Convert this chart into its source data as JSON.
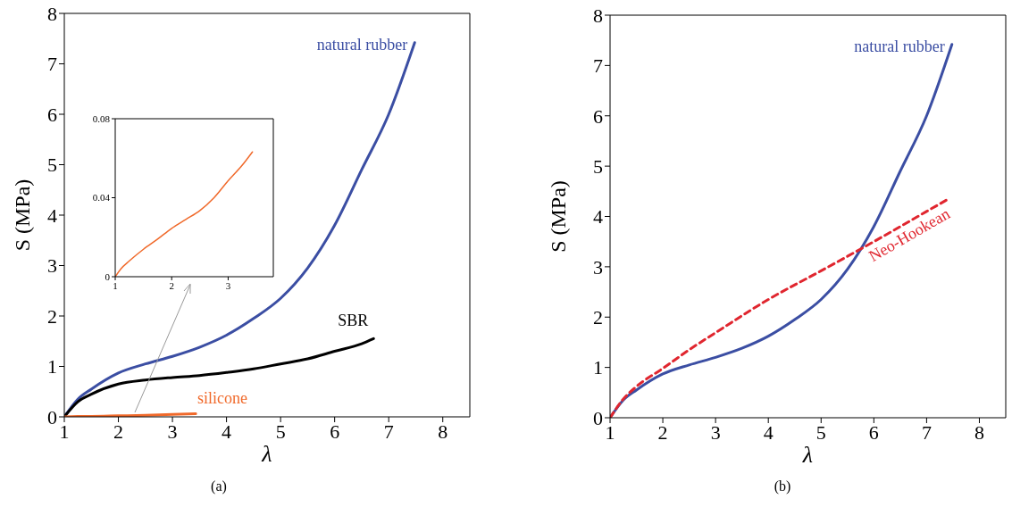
{
  "chart_data": [
    {
      "type": "line",
      "xlabel": "λ",
      "ylabel": "S (MPa)",
      "xlim": [
        1,
        8.5
      ],
      "ylim": [
        0,
        8
      ],
      "xticks": [
        1,
        2,
        3,
        4,
        5,
        6,
        7,
        8
      ],
      "yticks": [
        0,
        1,
        2,
        3,
        4,
        5,
        6,
        7,
        8
      ],
      "marker": "none",
      "line_style": "solid",
      "annotations": [
        "(a)"
      ],
      "series": [
        {
          "name": "natural rubber",
          "color": "#3b4ea3",
          "x": [
            1,
            1.25,
            1.5,
            2,
            2.5,
            3,
            3.5,
            4,
            4.5,
            5,
            5.5,
            6,
            6.5,
            7,
            7.48
          ],
          "values": [
            0,
            0.35,
            0.55,
            0.87,
            1.05,
            1.2,
            1.38,
            1.62,
            1.95,
            2.35,
            2.95,
            3.8,
            4.9,
            6.0,
            7.42
          ]
        },
        {
          "name": "SBR",
          "color": "#000000",
          "x": [
            1,
            1.25,
            1.5,
            2,
            2.5,
            3,
            3.5,
            4,
            4.5,
            5,
            5.5,
            6,
            6.5,
            6.72
          ],
          "values": [
            0,
            0.3,
            0.45,
            0.65,
            0.73,
            0.78,
            0.82,
            0.88,
            0.95,
            1.05,
            1.15,
            1.3,
            1.45,
            1.55
          ]
        },
        {
          "name": "silicone",
          "color": "#f0692a",
          "x": [
            1,
            1.25,
            1.5,
            2,
            2.5,
            3,
            3.43
          ],
          "values": [
            0,
            0.01,
            0.01,
            0.02,
            0.03,
            0.05,
            0.06
          ]
        }
      ]
    },
    {
      "type": "line",
      "xlim": [
        1,
        3.8
      ],
      "ylim": [
        0,
        0.08
      ],
      "xticks": [
        1,
        2,
        3
      ],
      "yticks": [
        0,
        0.04,
        0.08
      ],
      "marker": "none",
      "line_style": "solid",
      "series": [
        {
          "color": "#f0692a",
          "x": [
            1,
            1.1,
            1.25,
            1.5,
            1.75,
            2,
            2.25,
            2.5,
            2.75,
            3,
            3.25,
            3.43
          ],
          "values": [
            0,
            0.004,
            0.008,
            0.0139,
            0.019,
            0.0245,
            0.029,
            0.0335,
            0.04,
            0.0486,
            0.0565,
            0.0632
          ]
        }
      ]
    },
    {
      "type": "line",
      "xlabel": "λ",
      "ylabel": "S (MPa)",
      "xlim": [
        1,
        8.5
      ],
      "ylim": [
        0,
        8
      ],
      "xticks": [
        1,
        2,
        3,
        4,
        5,
        6,
        7,
        8
      ],
      "yticks": [
        0,
        1,
        2,
        3,
        4,
        5,
        6,
        7,
        8
      ],
      "marker": "none",
      "annotations": [
        "(b)"
      ],
      "series": [
        {
          "name": "natural rubber",
          "color": "#3b4ea3",
          "line_style": "solid",
          "x": [
            1,
            1.25,
            1.5,
            2,
            2.5,
            3,
            3.5,
            4,
            4.5,
            5,
            5.5,
            6,
            6.5,
            7,
            7.48
          ],
          "values": [
            0,
            0.35,
            0.55,
            0.87,
            1.05,
            1.2,
            1.38,
            1.62,
            1.95,
            2.35,
            2.95,
            3.8,
            4.9,
            6.0,
            7.42
          ]
        },
        {
          "name": "Neo-Hookean",
          "color": "#e0262f",
          "line_style": "dashed",
          "x": [
            1,
            1.25,
            1.5,
            2,
            2.5,
            3,
            4,
            5,
            6,
            7,
            7.4
          ],
          "values": [
            0,
            0.37,
            0.62,
            0.98,
            1.35,
            1.69,
            2.35,
            2.92,
            3.5,
            4.1,
            4.34
          ]
        }
      ]
    }
  ]
}
